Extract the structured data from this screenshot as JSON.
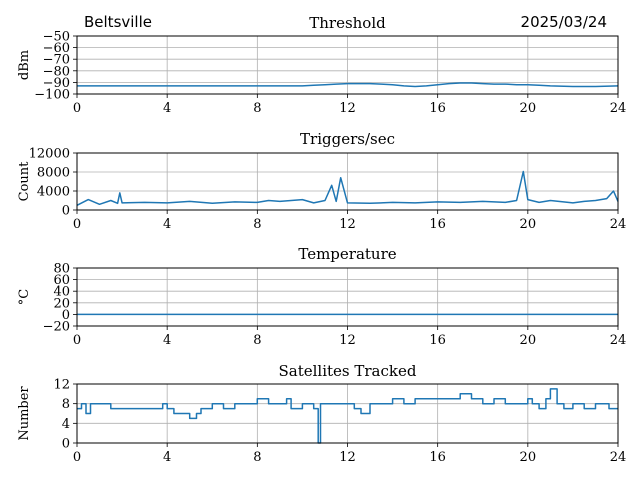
{
  "header": {
    "station": "Beltsville",
    "date": "2025/03/24"
  },
  "colors": {
    "line": "#1f77b4",
    "grid": "#b0b0b0",
    "axes": "#000000"
  },
  "chart_data": [
    {
      "type": "line",
      "title": "Threshold",
      "xlabel": "",
      "ylabel": "dBm",
      "xlim": [
        0,
        24
      ],
      "ylim": [
        -100,
        -50
      ],
      "xticks": [
        0,
        4,
        8,
        12,
        16,
        20,
        24
      ],
      "yticks": [
        -100,
        -90,
        -80,
        -70,
        -60,
        -50
      ],
      "ytick_labels": [
        "−100",
        "−90",
        "−80",
        "−70",
        "−60",
        "−50"
      ],
      "grid": true,
      "series": [
        {
          "x": [
            0,
            2,
            4,
            6,
            8,
            10,
            10.5,
            11,
            11.5,
            12,
            12.5,
            13,
            13.5,
            14,
            14.5,
            15,
            15.5,
            16,
            16.5,
            17,
            17.5,
            18,
            18.5,
            19,
            19.5,
            20,
            20.5,
            21,
            22,
            23,
            24
          ],
          "y": [
            -93,
            -93,
            -93,
            -93,
            -93,
            -93,
            -92.5,
            -92,
            -91.5,
            -91,
            -91,
            -91,
            -91.5,
            -92,
            -93,
            -93.5,
            -93,
            -92,
            -91,
            -90.5,
            -90.5,
            -91,
            -91.5,
            -91.5,
            -92,
            -92,
            -92.5,
            -93,
            -93.5,
            -93.5,
            -93
          ]
        }
      ]
    },
    {
      "type": "line",
      "title": "Triggers/sec",
      "xlabel": "",
      "ylabel": "Count",
      "xlim": [
        0,
        24
      ],
      "ylim": [
        0,
        12000
      ],
      "xticks": [
        0,
        4,
        8,
        12,
        16,
        20,
        24
      ],
      "yticks": [
        0,
        4000,
        8000,
        12000
      ],
      "grid": true,
      "series": [
        {
          "x": [
            0,
            0.5,
            1,
            1.5,
            1.8,
            1.9,
            2,
            3,
            4,
            5,
            6,
            7,
            8,
            8.5,
            9,
            10,
            10.5,
            11,
            11.3,
            11.5,
            11.7,
            12,
            13,
            14,
            15,
            16,
            17,
            18,
            19,
            19.5,
            19.8,
            20,
            20.5,
            21,
            22,
            22.5,
            23,
            23.5,
            23.8,
            24
          ],
          "y": [
            1000,
            2200,
            1200,
            2000,
            1400,
            3600,
            1500,
            1600,
            1500,
            1800,
            1400,
            1700,
            1600,
            2000,
            1800,
            2200,
            1500,
            2000,
            5200,
            1800,
            6800,
            1500,
            1400,
            1600,
            1500,
            1700,
            1600,
            1800,
            1600,
            2000,
            8100,
            2200,
            1600,
            2000,
            1500,
            1800,
            2000,
            2400,
            4000,
            1800
          ]
        }
      ]
    },
    {
      "type": "line",
      "title": "Temperature",
      "xlabel": "",
      "ylabel": "°C",
      "xlim": [
        0,
        24
      ],
      "ylim": [
        -20,
        80
      ],
      "xticks": [
        0,
        4,
        8,
        12,
        16,
        20,
        24
      ],
      "yticks": [
        -20,
        0,
        20,
        40,
        60,
        80
      ],
      "ytick_labels": [
        "−20",
        "0",
        "20",
        "40",
        "60",
        "80"
      ],
      "grid": true,
      "series": [
        {
          "x": [
            0,
            24
          ],
          "y": [
            0,
            0
          ]
        }
      ]
    },
    {
      "type": "line",
      "title": "Satellites Tracked",
      "xlabel": "",
      "ylabel": "Number",
      "xlim": [
        0,
        24
      ],
      "ylim": [
        0,
        12
      ],
      "xticks": [
        0,
        4,
        8,
        12,
        16,
        20,
        24
      ],
      "yticks": [
        0,
        4,
        8,
        12
      ],
      "grid": true,
      "series": [
        {
          "step": true,
          "x": [
            0,
            0.2,
            0.4,
            0.6,
            1.2,
            1.5,
            2.2,
            2.8,
            3.5,
            3.8,
            4,
            4.3,
            4.6,
            5,
            5.3,
            5.5,
            6,
            6.5,
            7,
            7.5,
            8,
            8.5,
            9,
            9.3,
            9.5,
            10,
            10.2,
            10.5,
            10.7,
            10.8,
            11,
            11.5,
            12,
            12.3,
            12.6,
            13,
            13.3,
            13.6,
            14,
            14.5,
            15,
            15.5,
            16,
            16.5,
            17,
            17.5,
            18,
            18.5,
            19,
            19.5,
            20,
            20.2,
            20.5,
            20.8,
            21,
            21.3,
            21.6,
            22,
            22.5,
            23,
            23.3,
            23.6,
            24
          ],
          "y": [
            7,
            8,
            6,
            8,
            8,
            7,
            7,
            7,
            7,
            8,
            7,
            6,
            6,
            5,
            6,
            7,
            8,
            7,
            8,
            8,
            9,
            8,
            8,
            9,
            7,
            8,
            8,
            7,
            0,
            8,
            8,
            8,
            8,
            7,
            6,
            8,
            8,
            8,
            9,
            8,
            9,
            9,
            9,
            9,
            10,
            9,
            8,
            9,
            8,
            8,
            9,
            8,
            7,
            9,
            11,
            8,
            7,
            8,
            7,
            8,
            8,
            7,
            7
          ]
        }
      ]
    }
  ]
}
